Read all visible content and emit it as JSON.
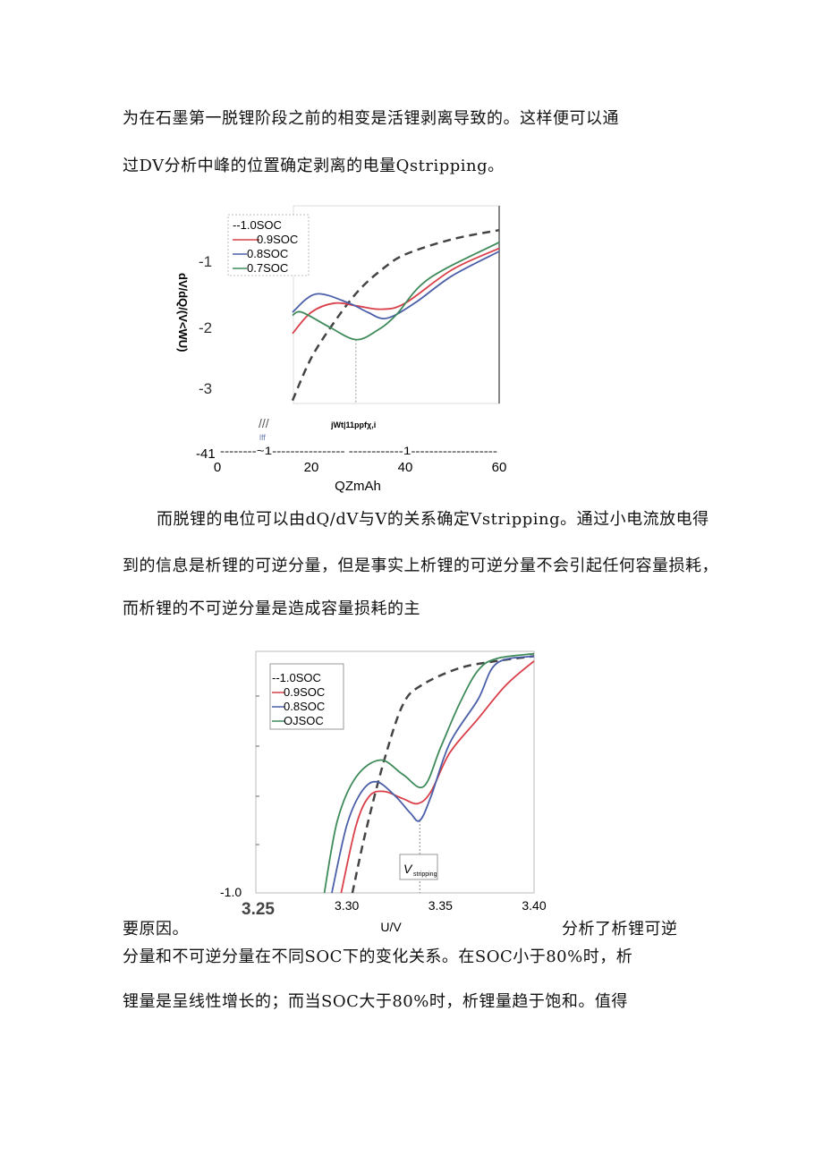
{
  "text": {
    "p1_line1": "为在石墨第一脱锂阶段之前的相变是活锂剥离导致的。这样便可以通",
    "p1_line2": "过DV分析中峰的位置确定剥离的电量Qstripping。",
    "p2_line1": "而脱锂的电位可以由dQ/dV与V的关系确定Vstripping。通过小电流放电得",
    "p2_line2": "到的信息是析锂的可逆分量，但是事实上析锂的可逆分量不会引起任何容量损耗，",
    "p2_line3": "而析锂的不可逆分量是造成容量损耗的主",
    "p3_left": "要原因。",
    "p3_right": "分析了析锂可逆",
    "p3_line2": "分量和不可逆分量在不同SOC下的变化关系。在SOC小于80%时，析",
    "p3_line3": "锂量是呈线性增长的；而当SOC大于80%时，析锂量趋于饱和。值得"
  },
  "chart_data": [
    {
      "type": "line",
      "xlabel": "QZmAh",
      "ylabel": "dV/dQ/(V<WU)",
      "xticks": [
        "0",
        "20",
        "40",
        "60"
      ],
      "yticks": [
        "-1",
        "-2",
        "-3",
        "-41"
      ],
      "xlim": [
        0,
        60
      ],
      "ylim": [
        -3.25,
        0
      ],
      "annotation": "jWt|11ppfχ,i",
      "annotation2": "lff",
      "axis_break": "--------~1---------------- ------------1-------------------",
      "legend_position": "top-left",
      "series": [
        {
          "name": "--1.0SOC",
          "color": "#444444",
          "dashed": true,
          "x": [
            16,
            20,
            25,
            30,
            35,
            40,
            50,
            60
          ],
          "y": [
            -3.2,
            -2.5,
            -1.9,
            -1.4,
            -1.05,
            -0.8,
            -0.55,
            -0.4
          ]
        },
        {
          "name": "0.9SOC",
          "color": "#d9404a",
          "x": [
            16,
            20,
            25,
            30,
            35,
            40,
            50,
            60
          ],
          "y": [
            -2.1,
            -1.75,
            -1.6,
            -1.65,
            -1.7,
            -1.6,
            -1.05,
            -0.7
          ]
        },
        {
          "name": "0.8SOC",
          "color": "#4a5fa8",
          "x": [
            16,
            21,
            28,
            32,
            36,
            42,
            50,
            60
          ],
          "y": [
            -1.75,
            -1.45,
            -1.6,
            -1.75,
            -1.85,
            -1.6,
            -1.15,
            -0.75
          ]
        },
        {
          "name": "0.7SOC",
          "color": "#3f8a5a",
          "x": [
            16,
            18,
            24,
            29.5,
            34,
            38,
            45,
            60
          ],
          "y": [
            -1.8,
            -1.75,
            -2.0,
            -2.2,
            -2.05,
            -1.8,
            -1.2,
            -0.6
          ]
        }
      ],
      "marker_x": 29.5
    },
    {
      "type": "line",
      "xlabel": "U/V",
      "xticks": [
        "3.25",
        "3.30",
        "3.35",
        "3.40"
      ],
      "yticks": [
        "-1.0"
      ],
      "xlim": [
        3.25,
        3.4
      ],
      "ylim": [
        -1.0,
        0
      ],
      "annotation": "V",
      "annotation_sub": "stripping",
      "legend_position": "top-left",
      "series": [
        {
          "name": "--1.0SOC",
          "color": "#444444",
          "dashed": true,
          "x": [
            3.303,
            3.31,
            3.32,
            3.33,
            3.34,
            3.36,
            3.38,
            3.4
          ],
          "y": [
            -1,
            -0.75,
            -0.45,
            -0.22,
            -0.14,
            -0.07,
            -0.04,
            -0.02
          ]
        },
        {
          "name": "0.9SOC",
          "color": "#d9404a",
          "x": [
            3.297,
            3.305,
            3.312,
            3.32,
            3.33,
            3.338,
            3.345,
            3.355,
            3.37,
            3.385,
            3.4
          ],
          "y": [
            -1,
            -0.72,
            -0.6,
            -0.58,
            -0.61,
            -0.63,
            -0.58,
            -0.42,
            -0.28,
            -0.14,
            -0.04
          ]
        },
        {
          "name": "0.8SOC",
          "color": "#4a5fa8",
          "x": [
            3.292,
            3.3,
            3.308,
            3.316,
            3.326,
            3.334,
            3.339,
            3.345,
            3.355,
            3.37,
            3.38,
            3.4
          ],
          "y": [
            -1,
            -0.72,
            -0.58,
            -0.54,
            -0.6,
            -0.67,
            -0.7,
            -0.6,
            -0.38,
            -0.2,
            -0.05,
            -0.02
          ]
        },
        {
          "name": "OJSOC",
          "color": "#3f8a5a",
          "x": [
            3.288,
            3.295,
            3.305,
            3.318,
            3.33,
            3.341,
            3.35,
            3.36,
            3.37,
            3.38,
            3.4
          ],
          "y": [
            -1,
            -0.7,
            -0.52,
            -0.45,
            -0.51,
            -0.56,
            -0.4,
            -0.22,
            -0.08,
            -0.03,
            -0.01
          ]
        }
      ],
      "marker_x": 3.339
    }
  ]
}
